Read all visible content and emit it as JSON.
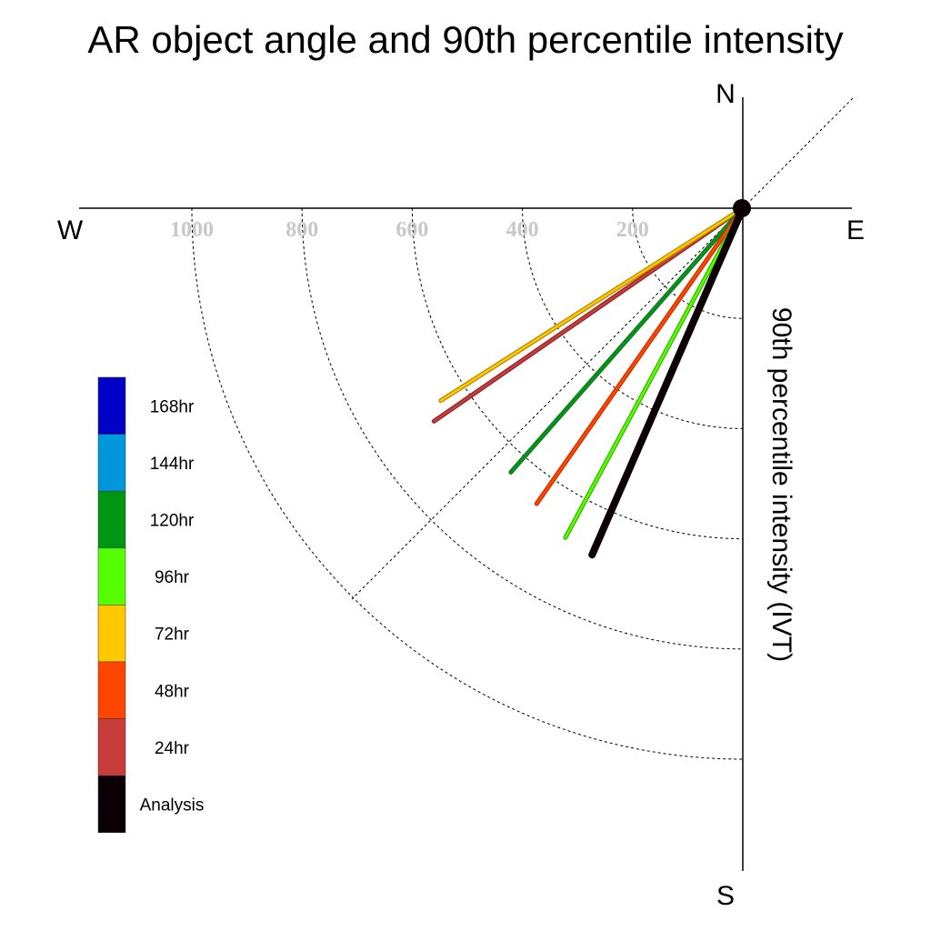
{
  "chart_data": {
    "type": "polar-line",
    "title": "AR object angle and 90th percentile intensity",
    "axis_label": "90th percentile intensity (IVT)",
    "compass": {
      "north": "N",
      "south": "S",
      "east": "E",
      "west": "W"
    },
    "ring_values": [
      200,
      400,
      600,
      800,
      1000
    ],
    "ring_labels": [
      "200",
      "400",
      "600",
      "800",
      "1000"
    ],
    "grid": true,
    "legend_position": "left",
    "legend": [
      {
        "label": "168hr",
        "color": "#0000c8"
      },
      {
        "label": "144hr",
        "color": "#0096dc"
      },
      {
        "label": "120hr",
        "color": "#009614"
      },
      {
        "label": "96hr",
        "color": "#55ff00"
      },
      {
        "label": "72hr",
        "color": "#ffc800"
      },
      {
        "label": "48hr",
        "color": "#ff4600"
      },
      {
        "label": "24hr",
        "color": "#c83c3c"
      },
      {
        "label": "Analysis",
        "color": "#0a0005"
      }
    ],
    "series": [
      {
        "name": "24hr",
        "angle_deg": 235.4,
        "intensity": 681,
        "color": "#c83c3c",
        "outline": "#8c2a2a"
      },
      {
        "name": "72hr",
        "angle_deg": 237.5,
        "intensity": 650,
        "color": "#ffc800",
        "outline": "#b48c00"
      },
      {
        "name": "120hr",
        "angle_deg": 221.3,
        "intensity": 638,
        "color": "#009614",
        "outline": "#1a7a2a"
      },
      {
        "name": "48hr",
        "angle_deg": 214.9,
        "intensity": 654,
        "color": "#ff4600",
        "outline": "#c83200"
      },
      {
        "name": "96hr",
        "angle_deg": 208.3,
        "intensity": 679,
        "color": "#55ff00",
        "outline": "#3cb400"
      },
      {
        "name": "Analysis",
        "angle_deg": 203.5,
        "intensity": 686,
        "color": "#0a0005",
        "outline": "#0a0005"
      }
    ]
  }
}
